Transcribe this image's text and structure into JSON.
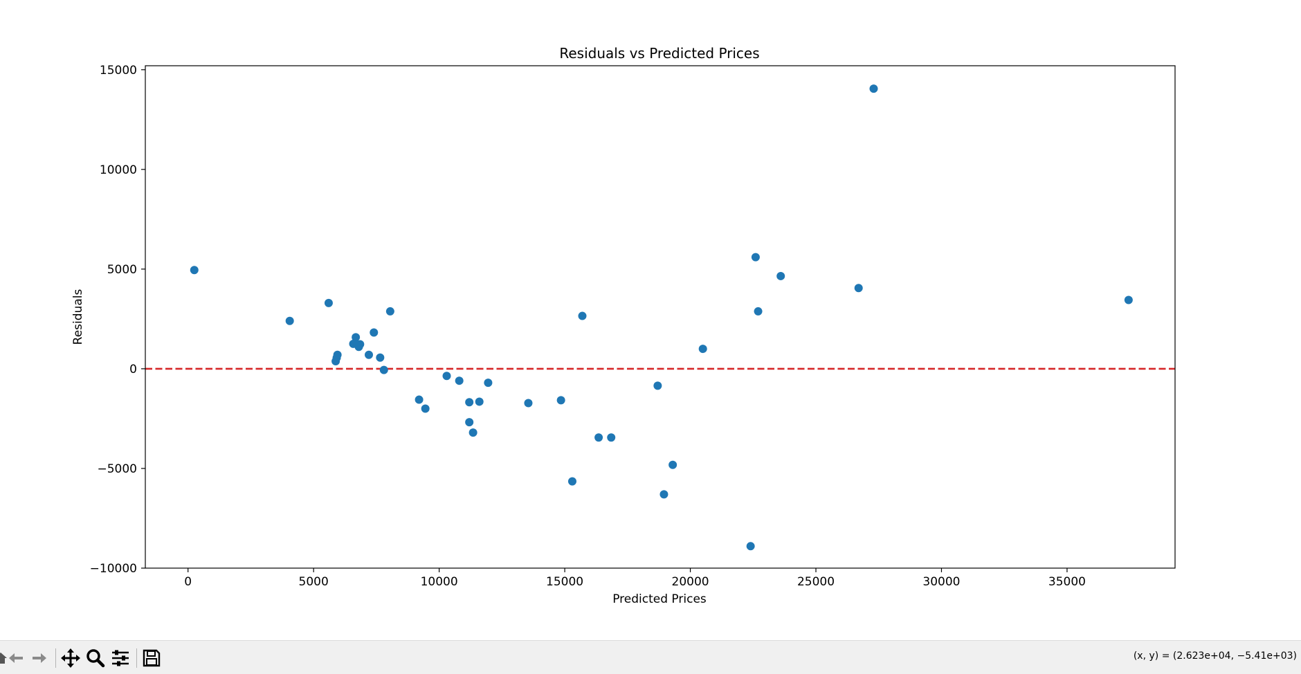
{
  "chart_data": {
    "type": "scatter",
    "title": "Residuals vs Predicted Prices",
    "xlabel": "Predicted Prices",
    "ylabel": "Residuals",
    "xlim": [
      -1700,
      39300
    ],
    "ylim": [
      -10000,
      15200
    ],
    "xticks": [
      0,
      5000,
      10000,
      15000,
      20000,
      25000,
      30000,
      35000
    ],
    "yticks": [
      -10000,
      -5000,
      0,
      5000,
      10000,
      15000
    ],
    "xtick_labels": [
      "0",
      "5000",
      "10000",
      "15000",
      "20000",
      "25000",
      "30000",
      "35000"
    ],
    "ytick_labels": [
      "−10000",
      "−5000",
      "0",
      "5000",
      "10000",
      "15000"
    ],
    "grid": false,
    "point_color": "#1f77b4",
    "reference_line": {
      "y": 0,
      "color": "#d62728",
      "style": "dashed"
    },
    "points": [
      {
        "x": 250,
        "y": 4950
      },
      {
        "x": 4050,
        "y": 2400
      },
      {
        "x": 5600,
        "y": 3300
      },
      {
        "x": 5880,
        "y": 380
      },
      {
        "x": 5920,
        "y": 550
      },
      {
        "x": 5950,
        "y": 700
      },
      {
        "x": 6580,
        "y": 1250
      },
      {
        "x": 6680,
        "y": 1580
      },
      {
        "x": 6750,
        "y": 1220
      },
      {
        "x": 6800,
        "y": 1100
      },
      {
        "x": 6850,
        "y": 1230
      },
      {
        "x": 7200,
        "y": 700
      },
      {
        "x": 7400,
        "y": 1820
      },
      {
        "x": 7650,
        "y": 560
      },
      {
        "x": 7800,
        "y": -60
      },
      {
        "x": 8050,
        "y": 2880
      },
      {
        "x": 9200,
        "y": -1550
      },
      {
        "x": 9450,
        "y": -2000
      },
      {
        "x": 10300,
        "y": -360
      },
      {
        "x": 10800,
        "y": -600
      },
      {
        "x": 11200,
        "y": -1680
      },
      {
        "x": 11200,
        "y": -2680
      },
      {
        "x": 11350,
        "y": -3200
      },
      {
        "x": 11600,
        "y": -1650
      },
      {
        "x": 11950,
        "y": -700
      },
      {
        "x": 13550,
        "y": -1720
      },
      {
        "x": 14850,
        "y": -1580
      },
      {
        "x": 15300,
        "y": -5650
      },
      {
        "x": 15700,
        "y": 2650
      },
      {
        "x": 16350,
        "y": -3450
      },
      {
        "x": 16850,
        "y": -3450
      },
      {
        "x": 18700,
        "y": -850
      },
      {
        "x": 18950,
        "y": -6300
      },
      {
        "x": 19300,
        "y": -4820
      },
      {
        "x": 20500,
        "y": 1000
      },
      {
        "x": 22400,
        "y": -8900
      },
      {
        "x": 22600,
        "y": 5600
      },
      {
        "x": 22700,
        "y": 2880
      },
      {
        "x": 23600,
        "y": 4650
      },
      {
        "x": 26700,
        "y": 4050
      },
      {
        "x": 27300,
        "y": 14050
      },
      {
        "x": 37450,
        "y": 3450
      }
    ]
  },
  "toolbar": {
    "icons": [
      "home-icon",
      "back-arrow-icon",
      "forward-arrow-icon",
      "pan-icon",
      "zoom-icon",
      "configure-subplots-icon",
      "save-icon"
    ],
    "coordinate_readout": "(x, y) = (2.623e+04, −5.41e+03)"
  }
}
